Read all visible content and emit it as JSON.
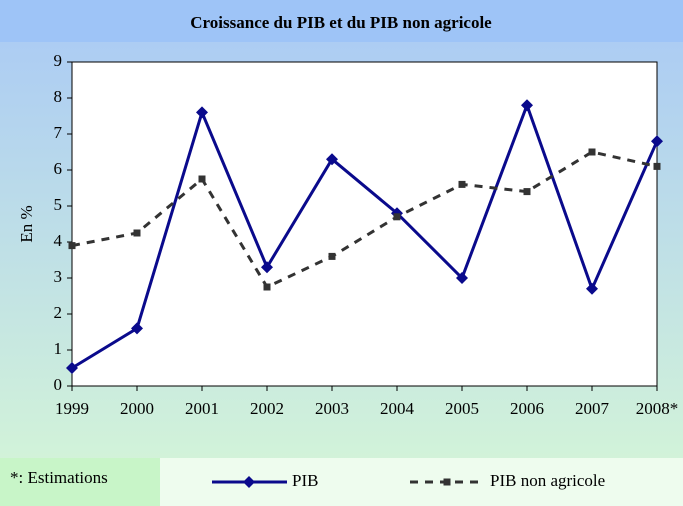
{
  "chart_data": {
    "type": "line",
    "title": "Croissance du PIB et du PIB non agricole",
    "ylabel": "En %",
    "note": "*: Estimations",
    "categories": [
      "1999",
      "2000",
      "2001",
      "2002",
      "2003",
      "2004",
      "2005",
      "2006",
      "2007",
      "2008*"
    ],
    "series": [
      {
        "name": "PIB",
        "color": "#0a0a8c",
        "style": "solid",
        "marker": "diamond",
        "values": [
          0.5,
          1.6,
          7.6,
          3.3,
          6.3,
          4.8,
          3.0,
          7.8,
          2.7,
          6.8
        ]
      },
      {
        "name": "PIB non agricole",
        "color": "#333333",
        "style": "dashed",
        "marker": "square",
        "values": [
          3.9,
          4.25,
          5.75,
          2.75,
          3.6,
          4.7,
          5.6,
          5.4,
          6.5,
          6.1
        ]
      }
    ],
    "ylim": [
      0,
      9
    ],
    "yticks": [
      0,
      1,
      2,
      3,
      4,
      5,
      6,
      7,
      8,
      9
    ],
    "grid": false,
    "legend": "bottom"
  }
}
